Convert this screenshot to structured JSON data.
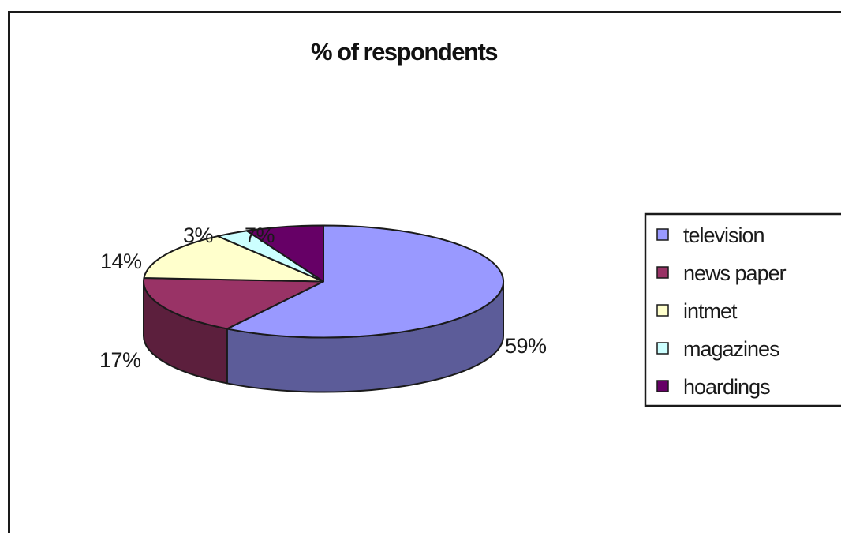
{
  "chart_data": {
    "type": "pie",
    "title": "% of respondents",
    "categories": [
      "television",
      "news paper",
      "intmet",
      "magazines",
      "hoardings"
    ],
    "values": [
      59,
      17,
      14,
      3,
      7
    ],
    "value_labels": [
      "59%",
      "17%",
      "14%",
      "3%",
      "7%"
    ],
    "three_d": true,
    "legend_position": "right",
    "colors": [
      "#9999ff",
      "#993366",
      "#ffffcc",
      "#ccffff",
      "#660066"
    ]
  }
}
